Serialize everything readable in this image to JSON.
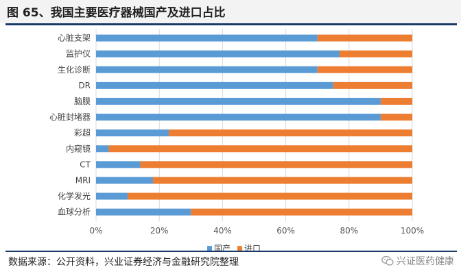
{
  "header": {
    "title": "图 65、我国主要医疗器械国产及进口占比"
  },
  "footer": {
    "source": "数据来源：公开资料，兴业证券经济与金融研究院整理",
    "watermark": "兴证医药健康",
    "watermark_icon": "wechat-icon"
  },
  "colors": {
    "domestic": "#5b9bd5",
    "import": "#ed7d31",
    "rule": "#1a3a6a"
  },
  "chart_data": {
    "type": "bar",
    "orientation": "horizontal",
    "stacked": true,
    "percent_stacked": true,
    "categories": [
      "心脏支架",
      "监护仪",
      "生化诊断",
      "DR",
      "脑膜",
      "心脏封堵器",
      "彩超",
      "内窥镜",
      "CT",
      "MRI",
      "化学发光",
      "血球分析"
    ],
    "series": [
      {
        "name": "国产",
        "values": [
          70,
          77,
          70,
          75,
          90,
          90,
          23,
          4,
          14,
          18,
          10,
          30
        ]
      },
      {
        "name": "进口",
        "values": [
          30,
          23,
          30,
          25,
          10,
          10,
          77,
          96,
          86,
          82,
          90,
          70
        ]
      }
    ],
    "xlim": [
      0,
      100
    ],
    "xticks": [
      "0%",
      "20%",
      "40%",
      "60%",
      "80%",
      "100%"
    ],
    "grid": true,
    "legend_position": "bottom"
  }
}
